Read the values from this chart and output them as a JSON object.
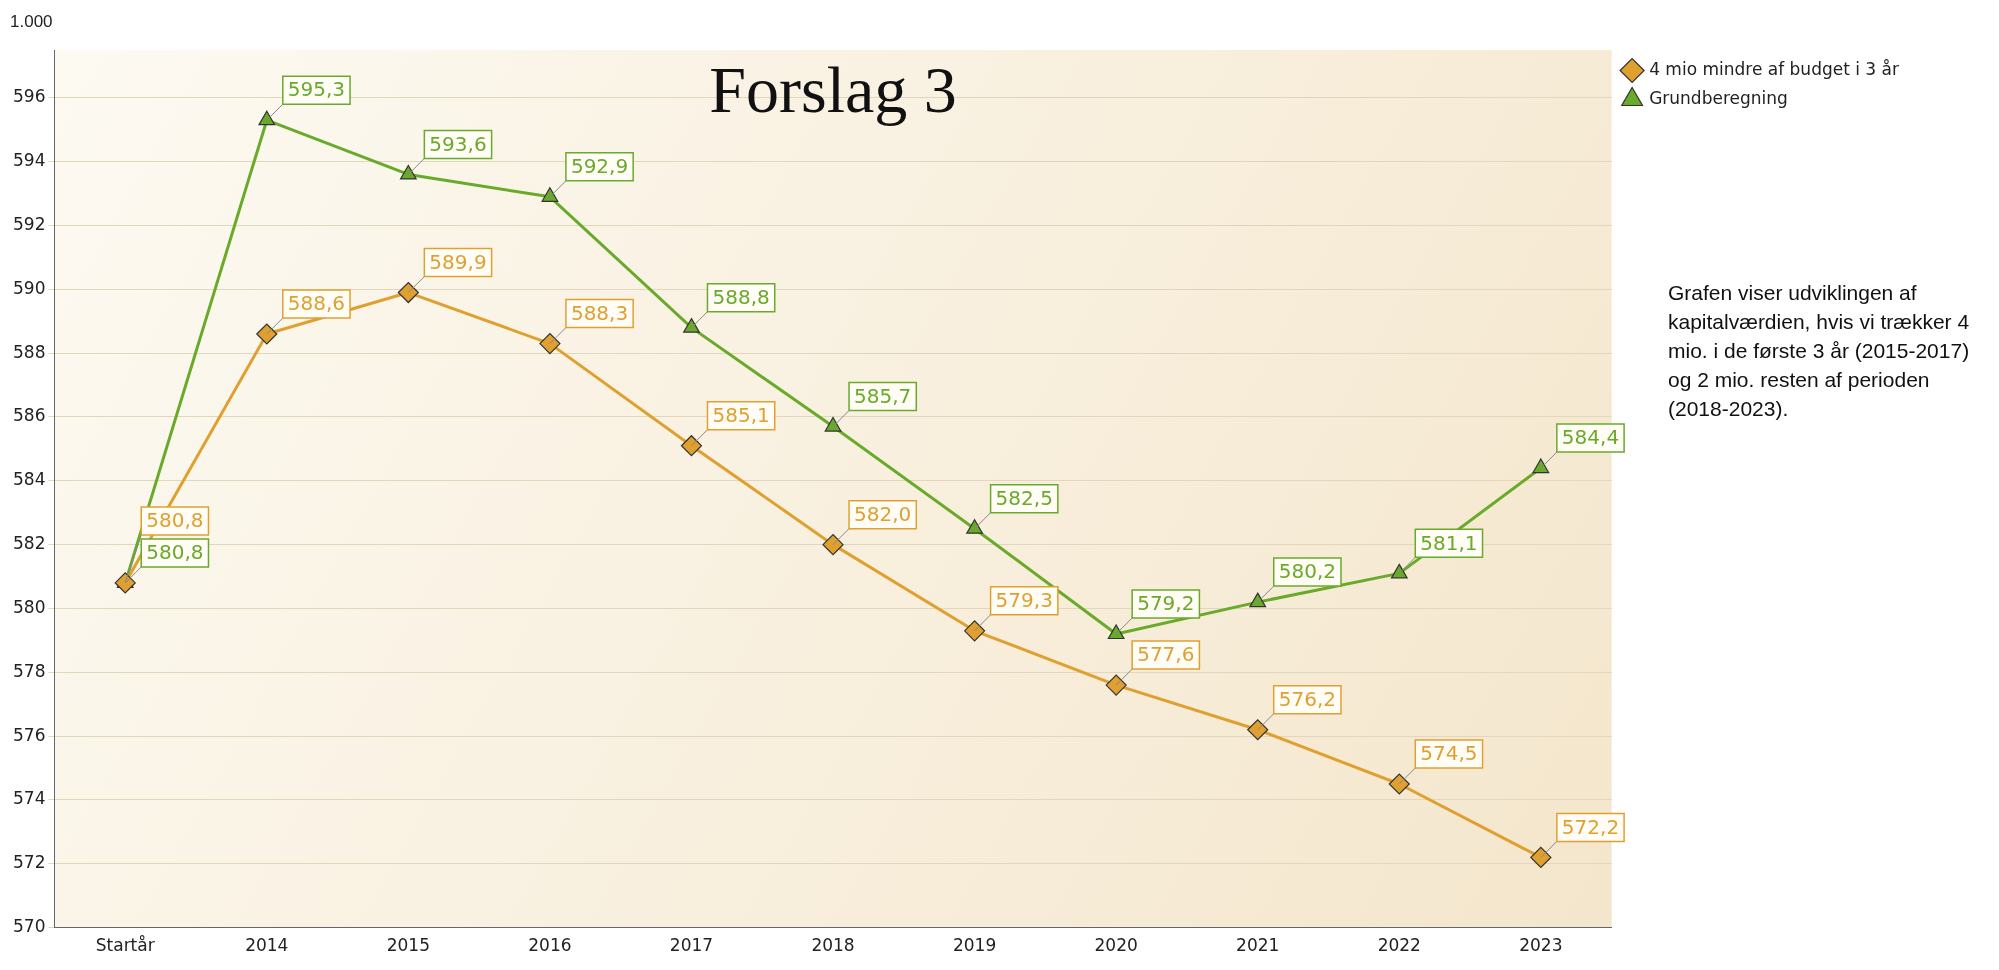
{
  "chart_data": {
    "type": "line",
    "title": "Forslag 3",
    "ylabel": "1.000",
    "annotations": [
      "Grafen viser udviklingen af kapitalværdien, hvis vi trækker 4 mio. i de første 3 år (2015-2017) og 2 mio. resten af perioden (2018-2023)."
    ],
    "categories": [
      "Startår",
      "2014",
      "2015",
      "2016",
      "2017",
      "2018",
      "2019",
      "2020",
      "2021",
      "2022",
      "2023"
    ],
    "series": [
      {
        "name": "4 mio mindre af budget i 3 år",
        "color": "#e0a030",
        "marker": "diamond",
        "values": [
          580.8,
          588.6,
          589.9,
          588.3,
          585.1,
          582.0,
          579.3,
          577.6,
          576.2,
          574.5,
          572.2
        ],
        "value_labels": [
          "580,8",
          "588,6",
          "589,9",
          "588,3",
          "585,1",
          "582,0",
          "579,3",
          "577,6",
          "576,2",
          "574,5",
          "572,2"
        ]
      },
      {
        "name": "Grundberegning",
        "color": "#6aaa2a",
        "marker": "triangle",
        "values": [
          580.8,
          595.3,
          593.6,
          592.9,
          588.8,
          585.7,
          582.5,
          579.2,
          580.2,
          581.1,
          584.4
        ],
        "value_labels": [
          "580,8",
          "595,3",
          "593,6",
          "592,9",
          "588,8",
          "585,7",
          "582,5",
          "579,2",
          "580,2",
          "581,1",
          "584,4"
        ]
      }
    ],
    "ylim": [
      570,
      597.5
    ],
    "yticks": [
      570,
      572,
      574,
      576,
      578,
      580,
      582,
      584,
      586,
      588,
      590,
      592,
      594,
      596
    ],
    "grid": "y",
    "legend": "top right",
    "line_style": "solid"
  }
}
